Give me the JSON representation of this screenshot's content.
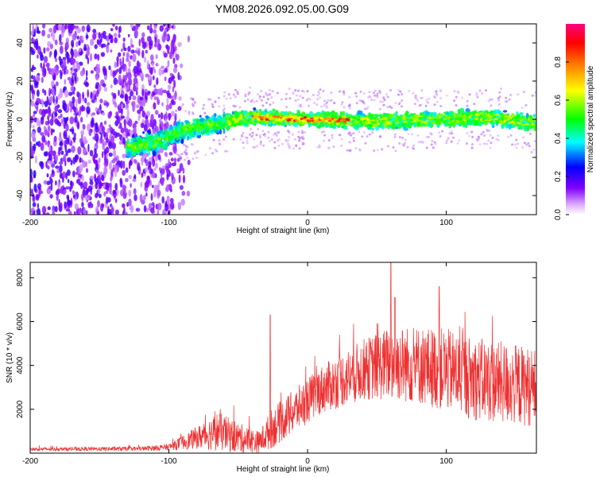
{
  "chart_data": [
    {
      "type": "heatmap",
      "name": "spectrogram",
      "title": "YM08.2026.092.05.00.G09",
      "xlabel": "Height of straight line (km)",
      "ylabel": "Frequency (Hz)",
      "xlim": [
        -200,
        165
      ],
      "ylim": [
        -50,
        50
      ],
      "xticks": [
        -200,
        -100,
        0,
        100
      ],
      "xtick_labels": [
        "-200",
        "-100",
        "0",
        "100"
      ],
      "yticks": [
        -40,
        -20,
        0,
        20,
        40
      ],
      "ytick_labels": [
        "-40",
        "-20",
        "0",
        "20",
        "40"
      ],
      "colorbar": {
        "label": "Normalized spectral amplitude",
        "range": [
          0,
          1
        ],
        "ticks": [
          0.0,
          0.2,
          0.4,
          0.6,
          0.8
        ],
        "tick_labels": [
          "0.0",
          "0.2",
          "0.4",
          "0.6",
          "0.8"
        ],
        "colormap": [
          "#ffffff",
          "#e0b0ff",
          "#8000ff",
          "#0000ff",
          "#00ffff",
          "#00ff00",
          "#ffff00",
          "#ff8000",
          "#ff0000",
          "#ff0080"
        ]
      },
      "band_center_hz": [
        {
          "x": -130,
          "f": -15
        },
        {
          "x": -110,
          "f": -12
        },
        {
          "x": -90,
          "f": -6
        },
        {
          "x": -70,
          "f": -3
        },
        {
          "x": -50,
          "f": 0
        },
        {
          "x": -40,
          "f": 1
        },
        {
          "x": 0,
          "f": 0
        },
        {
          "x": 50,
          "f": -1
        },
        {
          "x": 100,
          "f": 0
        },
        {
          "x": 130,
          "f": 1
        },
        {
          "x": 165,
          "f": -2
        }
      ],
      "noise_region_km": [
        -200,
        -95
      ],
      "peak_band_km": [
        -40,
        30
      ]
    },
    {
      "type": "line",
      "name": "snr",
      "title": "",
      "xlabel": "Height of straight line (km)",
      "ylabel": "SNR (10 * v/v)",
      "xlim": [
        -200,
        165
      ],
      "ylim": [
        0,
        8700
      ],
      "xticks": [
        -200,
        -100,
        0,
        100
      ],
      "xtick_labels": [
        "-200",
        "-100",
        "0",
        "100"
      ],
      "yticks": [
        2000,
        4000,
        6000,
        8000
      ],
      "ytick_labels": [
        "2000",
        "4000",
        "6000",
        "8000"
      ],
      "color": "#ee3030",
      "envelope": [
        {
          "x": -200,
          "mean": 180,
          "amp": 80
        },
        {
          "x": -120,
          "mean": 200,
          "amp": 100
        },
        {
          "x": -100,
          "mean": 280,
          "amp": 150
        },
        {
          "x": -80,
          "mean": 700,
          "amp": 500
        },
        {
          "x": -65,
          "mean": 1000,
          "amp": 900
        },
        {
          "x": -50,
          "mean": 700,
          "amp": 700
        },
        {
          "x": -35,
          "mean": 500,
          "amp": 500
        },
        {
          "x": -26,
          "mean": 1100,
          "amp": 900
        },
        {
          "x": -10,
          "mean": 1900,
          "amp": 1000
        },
        {
          "x": 10,
          "mean": 2900,
          "amp": 1100
        },
        {
          "x": 40,
          "mean": 3800,
          "amp": 1400
        },
        {
          "x": 60,
          "mean": 4100,
          "amp": 1700
        },
        {
          "x": 80,
          "mean": 4000,
          "amp": 1800
        },
        {
          "x": 100,
          "mean": 3800,
          "amp": 1900
        },
        {
          "x": 120,
          "mean": 3400,
          "amp": 1900
        },
        {
          "x": 140,
          "mean": 3200,
          "amp": 1900
        },
        {
          "x": 165,
          "mean": 3000,
          "amp": 1800
        }
      ],
      "spikes": [
        {
          "x": -27,
          "y": 6300
        },
        {
          "x": 60,
          "y": 8700
        },
        {
          "x": 95,
          "y": 7600
        },
        {
          "x": 63,
          "y": 7100
        }
      ]
    }
  ]
}
